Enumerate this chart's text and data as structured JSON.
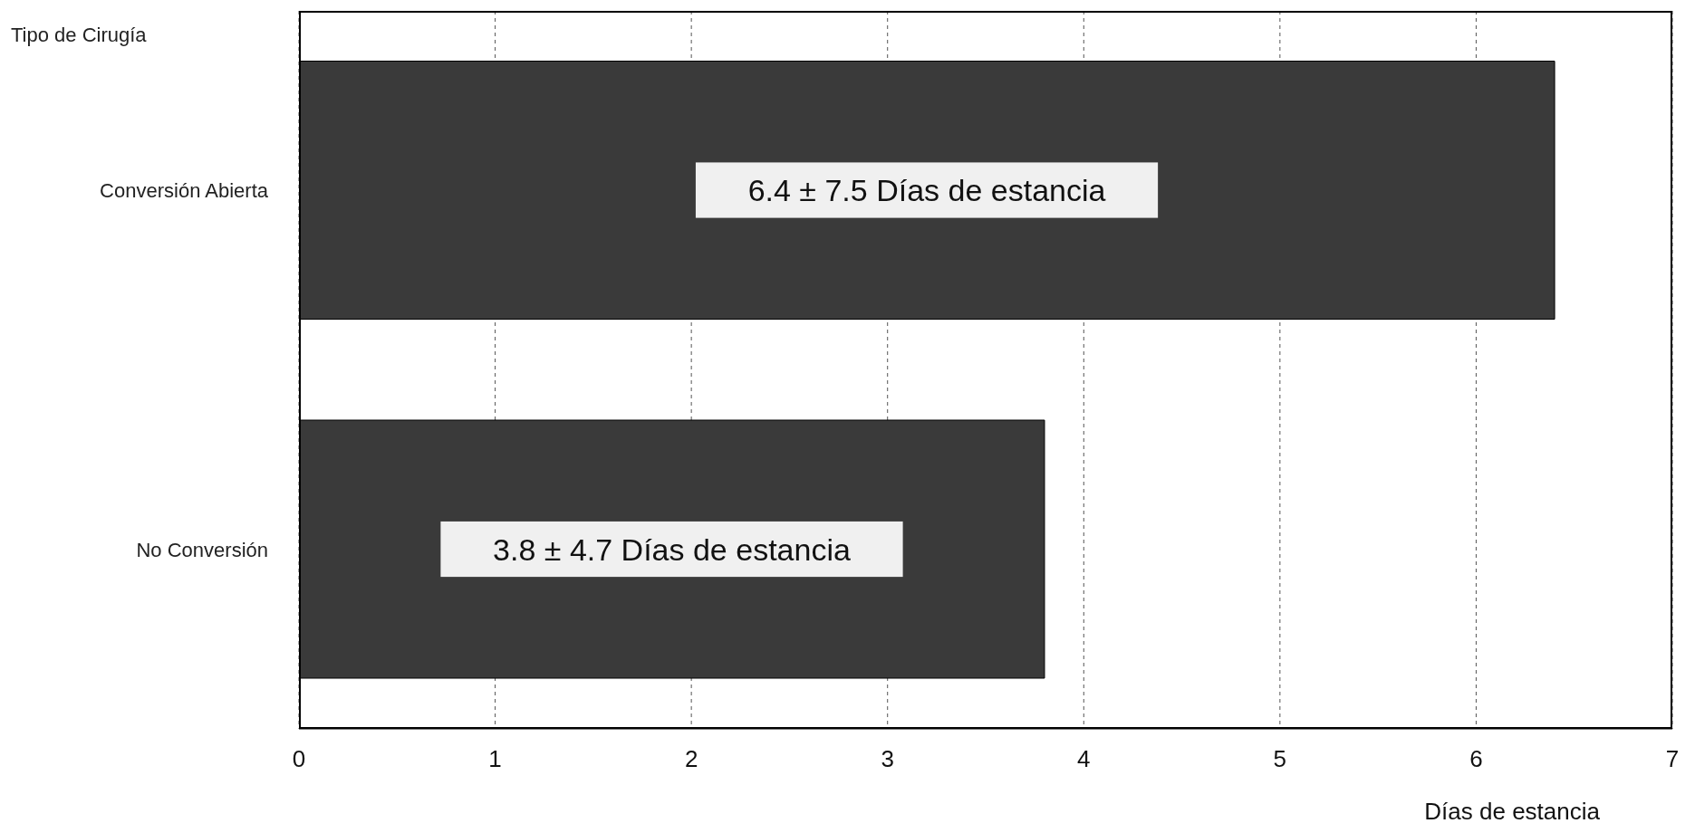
{
  "chart_data": {
    "type": "bar",
    "orientation": "horizontal",
    "ylabel": "Tipo de Cirugía",
    "xlabel": "Días de estancia",
    "categories": [
      "Conversión Abierta",
      "No Conversión"
    ],
    "values": [
      6.4,
      3.8
    ],
    "value_labels": [
      "6.4 ± 7.5 Días de estancia",
      "3.8 ± 4.7 Días de estancia"
    ],
    "color": "#3a3a3a",
    "xlim": [
      0,
      7
    ],
    "xticks": [
      0,
      1,
      2,
      3,
      4,
      5,
      6,
      7
    ],
    "grid": "x",
    "legend": false
  }
}
